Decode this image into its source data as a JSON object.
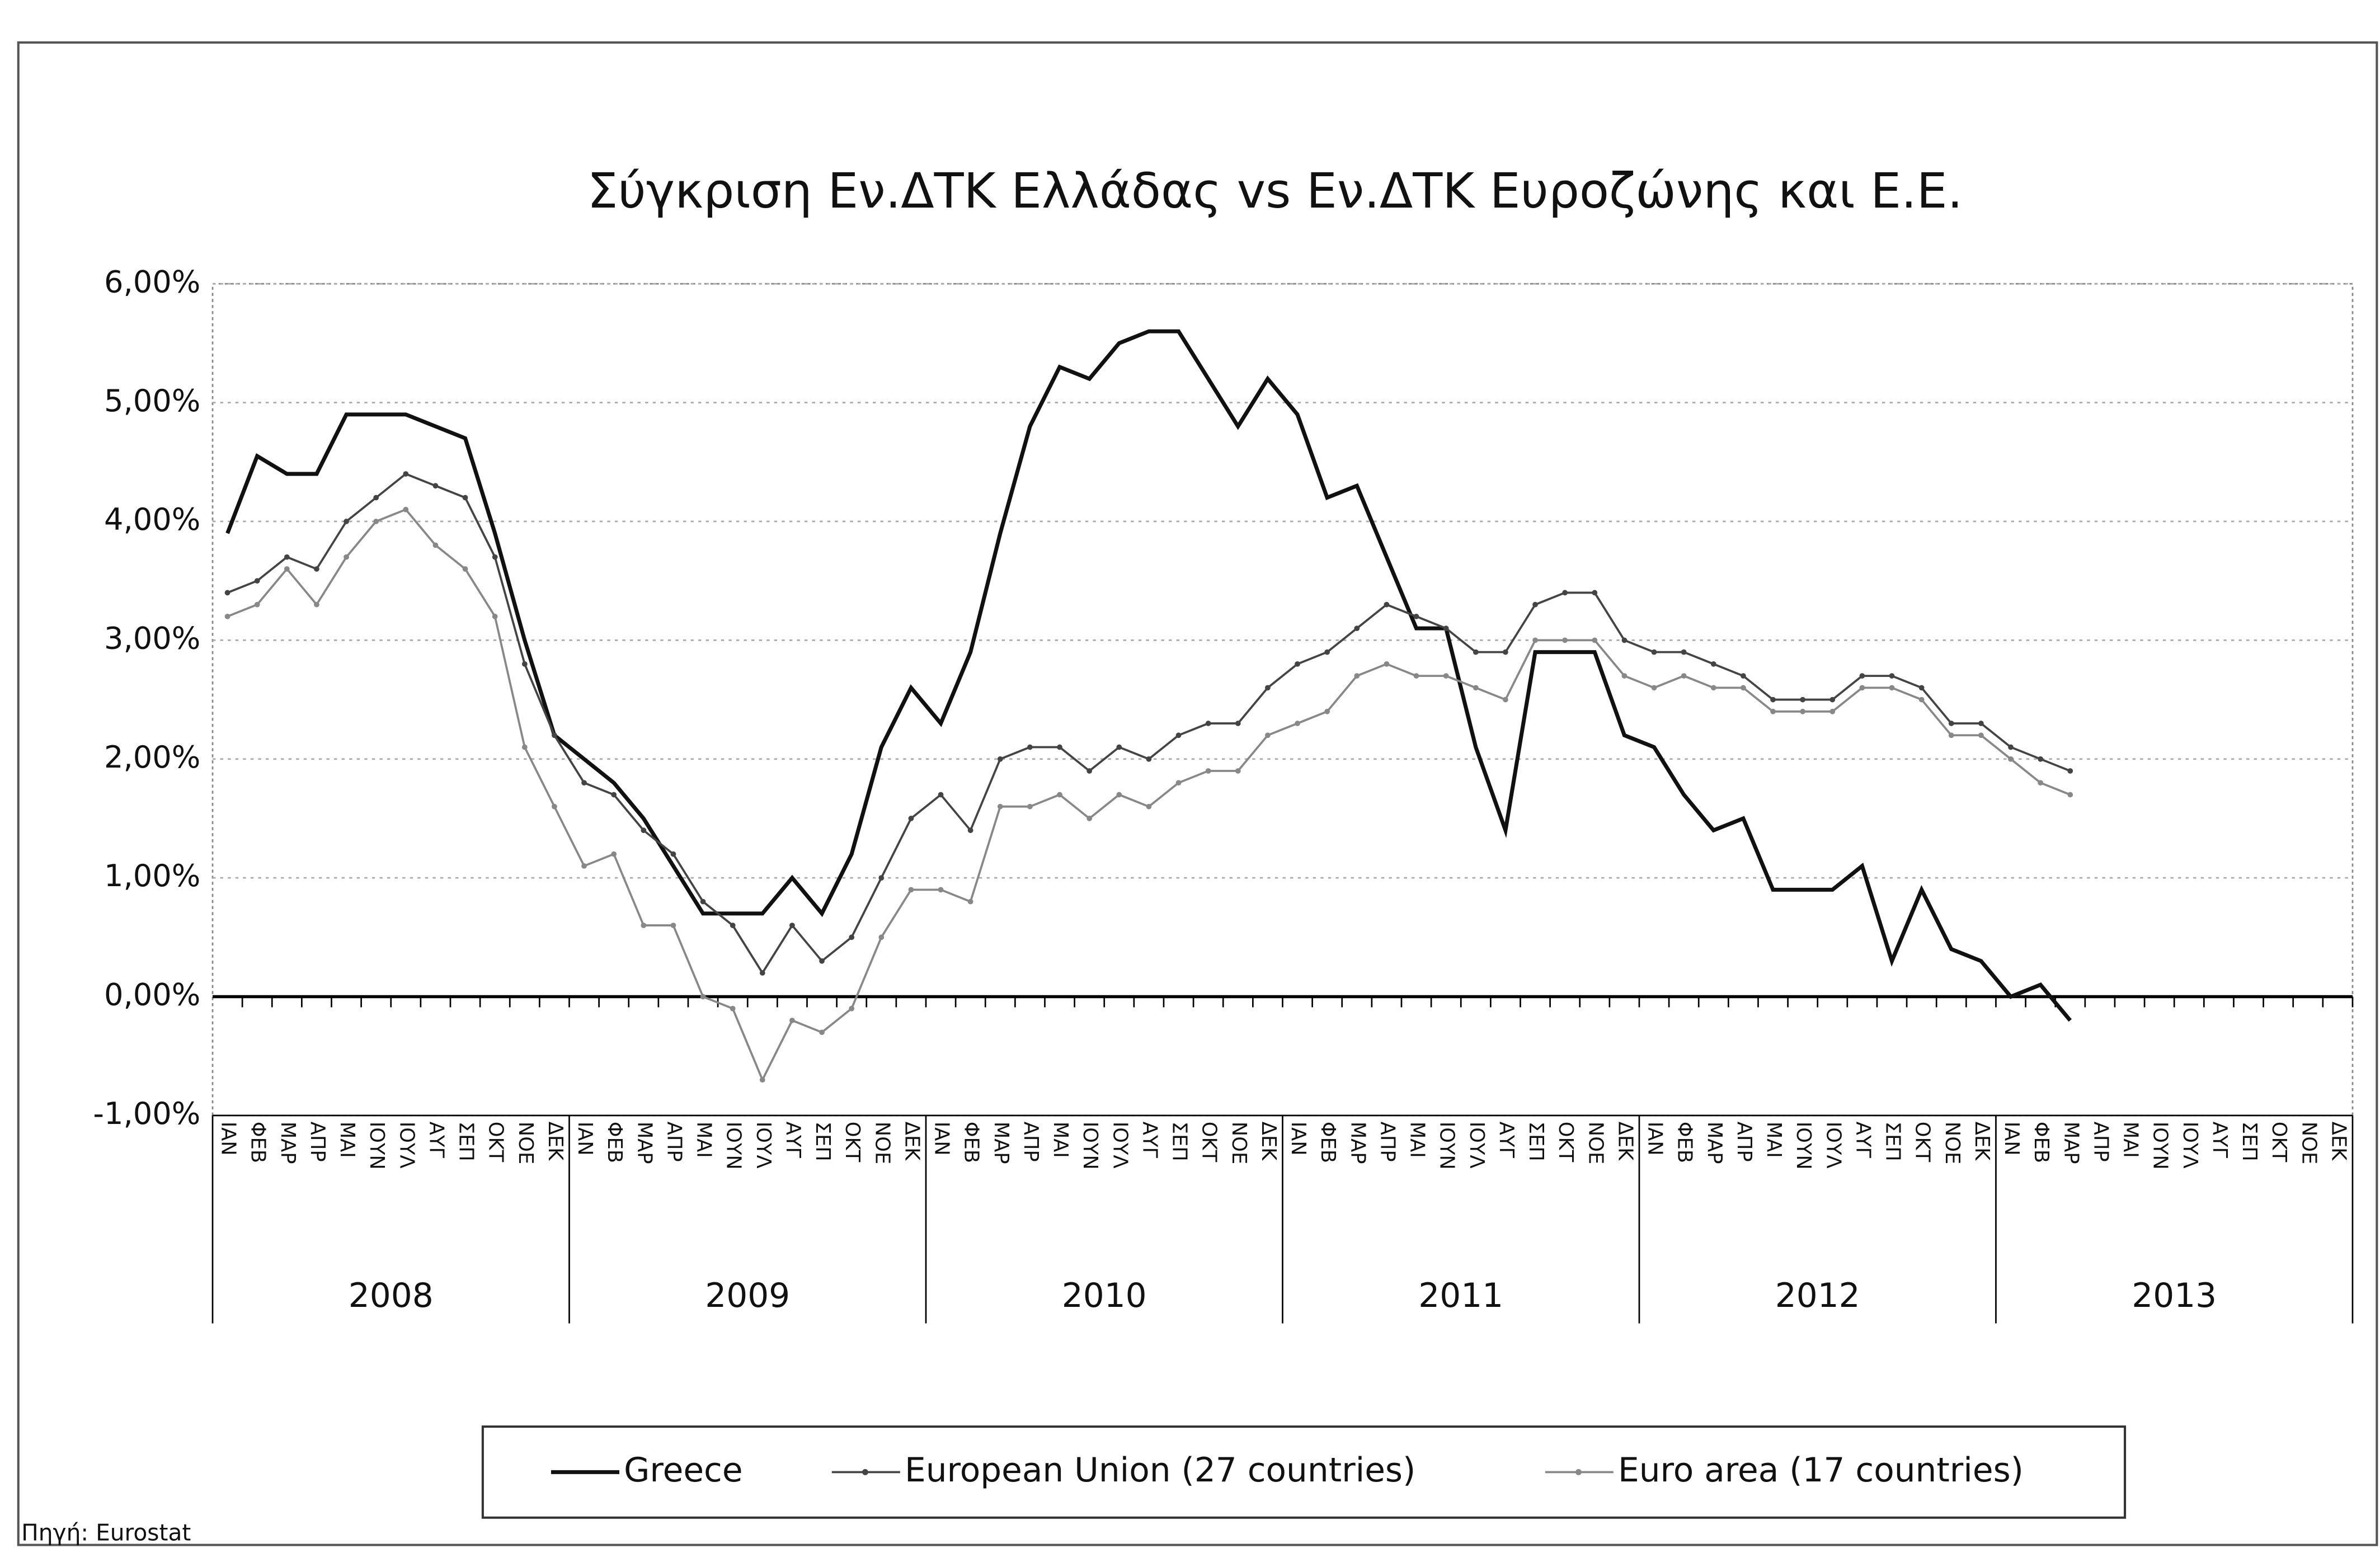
{
  "chart_data": {
    "type": "line",
    "title": "Σύγκριση Εν.ΔΤΚ Ελλάδας vs Εν.ΔΤΚ Ευροζώνης και Ε.Ε.",
    "source": "Πηγή: Eurostat",
    "categories": [
      "ΙΑΝ",
      "ΦΕΒ",
      "ΜΑΡ",
      "ΑΠΡ",
      "ΜΑΙ",
      "ΙΟΥΝ",
      "ΙΟΥΛ",
      "ΑΥΓ",
      "ΣΕΠ",
      "ΟΚΤ",
      "ΝΟΕ",
      "ΔΕΚ",
      "ΙΑΝ",
      "ΦΕΒ",
      "ΜΑΡ",
      "ΑΠΡ",
      "ΜΑΙ",
      "ΙΟΥΝ",
      "ΙΟΥΛ",
      "ΑΥΓ",
      "ΣΕΠ",
      "ΟΚΤ",
      "ΝΟΕ",
      "ΔΕΚ",
      "ΙΑΝ",
      "ΦΕΒ",
      "ΜΑΡ",
      "ΑΠΡ",
      "ΜΑΙ",
      "ΙΟΥΝ",
      "ΙΟΥΛ",
      "ΑΥΓ",
      "ΣΕΠ",
      "ΟΚΤ",
      "ΝΟΕ",
      "ΔΕΚ",
      "ΙΑΝ",
      "ΦΕΒ",
      "ΜΑΡ",
      "ΑΠΡ",
      "ΜΑΙ",
      "ΙΟΥΝ",
      "ΙΟΥΛ",
      "ΑΥΓ",
      "ΣΕΠ",
      "ΟΚΤ",
      "ΝΟΕ",
      "ΔΕΚ",
      "ΙΑΝ",
      "ΦΕΒ",
      "ΜΑΡ",
      "ΑΠΡ",
      "ΜΑΙ",
      "ΙΟΥΝ",
      "ΙΟΥΛ",
      "ΑΥΓ",
      "ΣΕΠ",
      "ΟΚΤ",
      "ΝΟΕ",
      "ΔΕΚ",
      "ΙΑΝ",
      "ΦΕΒ",
      "ΜΑΡ",
      "ΑΠΡ",
      "ΜΑΙ",
      "ΙΟΥΝ",
      "ΙΟΥΛ",
      "ΑΥΓ",
      "ΣΕΠ",
      "ΟΚΤ",
      "ΝΟΕ",
      "ΔΕΚ"
    ],
    "year_groups": [
      "2008",
      "2009",
      "2010",
      "2011",
      "2012",
      "2013"
    ],
    "series": [
      {
        "name": "Greece",
        "color": "#111111",
        "values": [
          3.9,
          4.55,
          4.4,
          4.4,
          4.9,
          4.9,
          4.9,
          4.8,
          4.7,
          3.9,
          3.0,
          2.2,
          2.0,
          1.8,
          1.5,
          1.1,
          0.7,
          0.7,
          0.7,
          1.0,
          0.7,
          1.2,
          2.1,
          2.6,
          2.3,
          2.9,
          3.9,
          4.8,
          5.3,
          5.2,
          5.5,
          5.6,
          5.6,
          5.2,
          4.8,
          5.2,
          4.9,
          4.2,
          4.3,
          3.7,
          3.1,
          3.1,
          2.1,
          1.4,
          2.9,
          2.9,
          2.9,
          2.2,
          2.1,
          1.7,
          1.4,
          1.5,
          0.9,
          0.9,
          0.9,
          1.1,
          0.3,
          0.9,
          0.4,
          0.3,
          0.0,
          0.1,
          -0.2,
          null,
          null,
          null,
          null,
          null,
          null,
          null,
          null,
          null
        ]
      },
      {
        "name": "European Union (27 countries)",
        "color": "#444444",
        "values": [
          3.4,
          3.5,
          3.7,
          3.6,
          4.0,
          4.2,
          4.4,
          4.3,
          4.2,
          3.7,
          2.8,
          2.2,
          1.8,
          1.7,
          1.4,
          1.2,
          0.8,
          0.6,
          0.2,
          0.6,
          0.3,
          0.5,
          1.0,
          1.5,
          1.7,
          1.4,
          2.0,
          2.1,
          2.1,
          1.9,
          2.1,
          2.0,
          2.2,
          2.3,
          2.3,
          2.6,
          2.8,
          2.9,
          3.1,
          3.3,
          3.2,
          3.1,
          2.9,
          2.9,
          3.3,
          3.4,
          3.4,
          3.0,
          2.9,
          2.9,
          2.8,
          2.7,
          2.5,
          2.5,
          2.5,
          2.7,
          2.7,
          2.6,
          2.3,
          2.3,
          2.1,
          2.0,
          1.9,
          null,
          null,
          null,
          null,
          null,
          null,
          null,
          null,
          null
        ]
      },
      {
        "name": "Euro area (17 countries)",
        "color": "#888888",
        "values": [
          3.2,
          3.3,
          3.6,
          3.3,
          3.7,
          4.0,
          4.1,
          3.8,
          3.6,
          3.2,
          2.1,
          1.6,
          1.1,
          1.2,
          0.6,
          0.6,
          0.0,
          -0.1,
          -0.7,
          -0.2,
          -0.3,
          -0.1,
          0.5,
          0.9,
          0.9,
          0.8,
          1.6,
          1.6,
          1.7,
          1.5,
          1.7,
          1.6,
          1.8,
          1.9,
          1.9,
          2.2,
          2.3,
          2.4,
          2.7,
          2.8,
          2.7,
          2.7,
          2.6,
          2.5,
          3.0,
          3.0,
          3.0,
          2.7,
          2.6,
          2.7,
          2.6,
          2.6,
          2.4,
          2.4,
          2.4,
          2.6,
          2.6,
          2.5,
          2.2,
          2.2,
          2.0,
          1.8,
          1.7,
          null,
          null,
          null,
          null,
          null,
          null,
          null,
          null,
          null
        ]
      }
    ],
    "ylim": [
      -1,
      6
    ],
    "yticks": [
      {
        "value": -1,
        "label": "-1,00%"
      },
      {
        "value": 0,
        "label": "0,00%"
      },
      {
        "value": 1,
        "label": "1,00%"
      },
      {
        "value": 2,
        "label": "2,00%"
      },
      {
        "value": 3,
        "label": "3,00%"
      },
      {
        "value": 4,
        "label": "4,00%"
      },
      {
        "value": 5,
        "label": "5,00%"
      },
      {
        "value": 6,
        "label": "6,00%"
      }
    ],
    "grid": true,
    "legend": "bottom"
  }
}
